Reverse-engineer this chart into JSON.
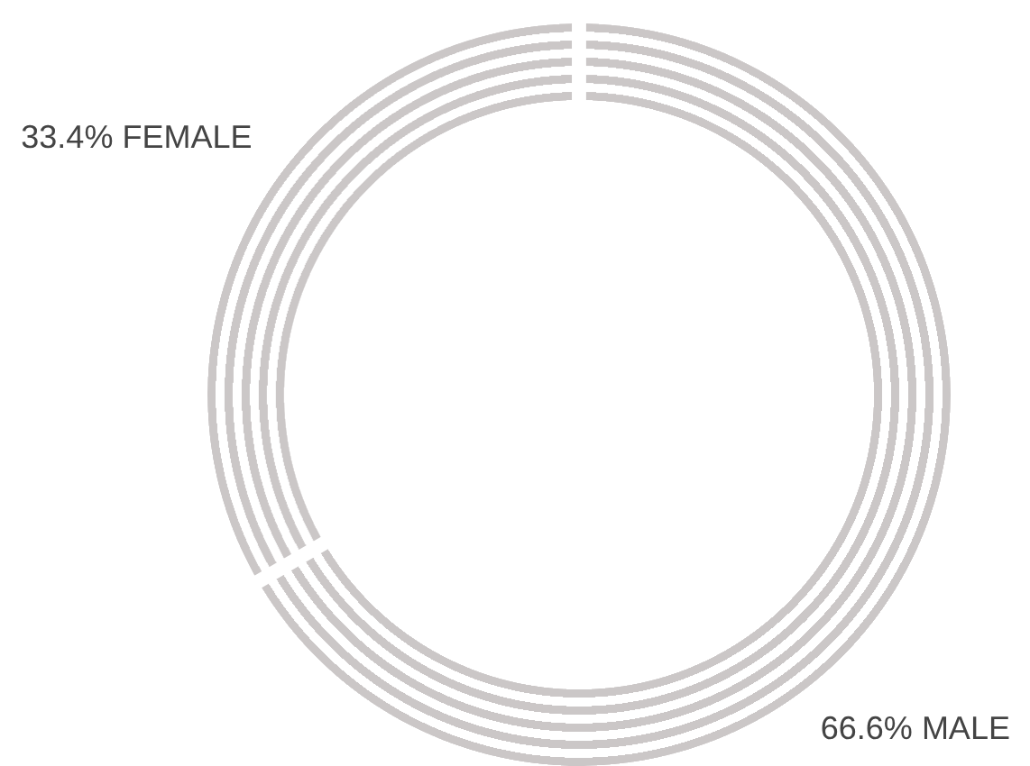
{
  "chart_data": {
    "type": "donut",
    "categories": [
      "FEMALE",
      "MALE"
    ],
    "values": [
      33.4,
      66.6
    ],
    "colors": [
      "#cbc7c7",
      "#cbc7c7"
    ],
    "value_labels": [
      "33.4%",
      "66.6%"
    ]
  }
}
